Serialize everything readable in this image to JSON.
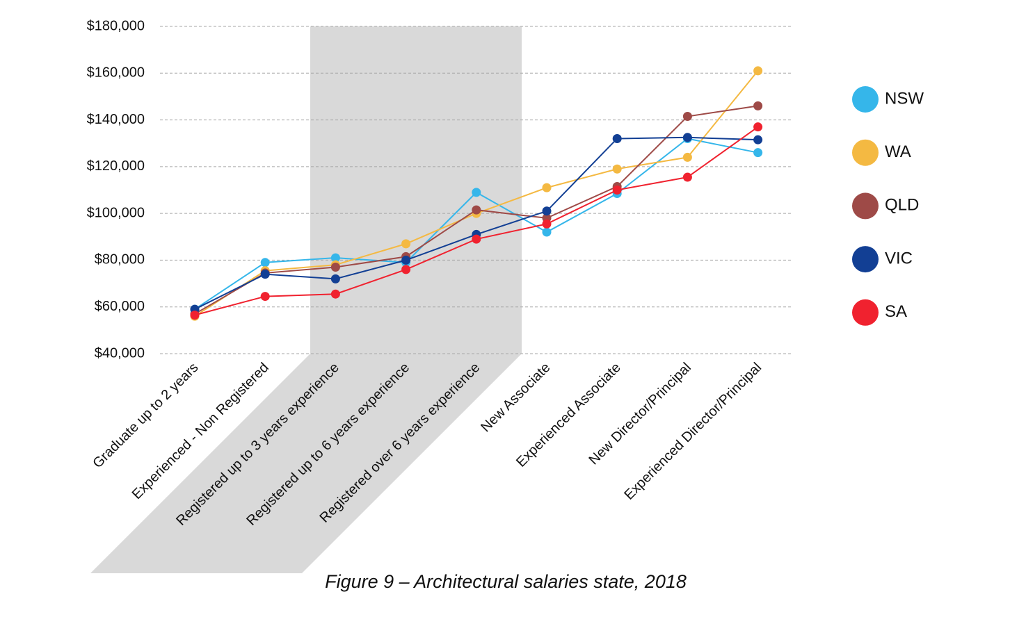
{
  "chart_data": {
    "type": "line",
    "caption": "Figure 9 – Architectural salaries state, 2018",
    "categories": [
      "Graduate up to 2 years",
      "Experienced - Non Registered",
      "Registered up to 3 years experience",
      "Registered up to 6 years experience",
      "Registered over 6 years experience",
      "New Associate",
      "Experienced Associate",
      "New Director/Principal",
      "Experienced Director/Principal"
    ],
    "series": [
      {
        "name": "NSW",
        "color": "#35b6ea",
        "values": [
          59000,
          79000,
          81000,
          79000,
          109000,
          92000,
          108500,
          132000,
          126000
        ]
      },
      {
        "name": "WA",
        "color": "#f4b942",
        "values": [
          56000,
          75500,
          78000,
          87000,
          100000,
          111000,
          119000,
          124000,
          161000
        ]
      },
      {
        "name": "QLD",
        "color": "#9e4a47",
        "values": [
          57000,
          74500,
          77000,
          81500,
          101500,
          98000,
          111500,
          141500,
          146000
        ]
      },
      {
        "name": "VIC",
        "color": "#123f94",
        "values": [
          59000,
          74000,
          72000,
          80000,
          91000,
          101000,
          132000,
          132500,
          131500
        ]
      },
      {
        "name": "SA",
        "color": "#f0222f",
        "values": [
          56500,
          64500,
          65500,
          76000,
          89000,
          95500,
          110000,
          115500,
          137000
        ]
      }
    ],
    "ylim": [
      40000,
      180000
    ],
    "yticks": [
      {
        "value": 40000,
        "label": "$40,000"
      },
      {
        "value": 60000,
        "label": "$60,000"
      },
      {
        "value": 80000,
        "label": "$80,000"
      },
      {
        "value": 100000,
        "label": "$100,000"
      },
      {
        "value": 120000,
        "label": "$120,000"
      },
      {
        "value": 140000,
        "label": "$140,000"
      },
      {
        "value": 160000,
        "label": "$160,000"
      },
      {
        "value": 180000,
        "label": "$180,000"
      }
    ],
    "grid": true,
    "legend": "right"
  }
}
